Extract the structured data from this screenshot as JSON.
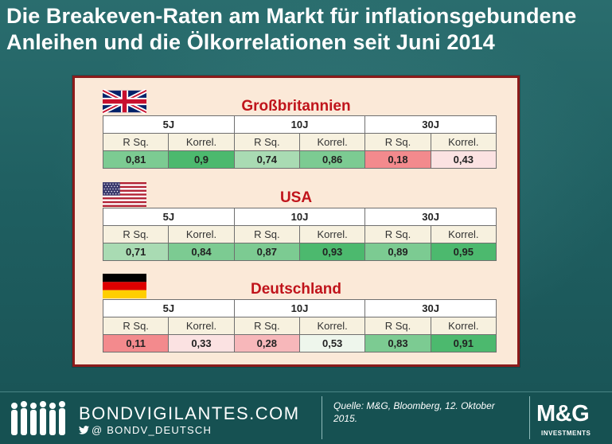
{
  "title": "Die Breakeven-Raten am Markt für inflationsgebundene Anleihen und die Ölkorrelationen seit Juni 2014",
  "colors": {
    "green_dark": "#4cb96e",
    "green_mid": "#7ccb92",
    "green_light": "#a9dbb3",
    "red_strong": "#f38a8d",
    "red_light": "#f7b7ba",
    "pink_pale": "#fbe2e2",
    "neutral_pale": "#eef6ec"
  },
  "subheader": [
    "R Sq.",
    "Korrel.",
    "R Sq.",
    "Korrel.",
    "R Sq.",
    "Korrel."
  ],
  "tenors": [
    "5J",
    "10J",
    "30J"
  ],
  "countries": [
    {
      "name": "Großbritannien",
      "flag": "uk-flag-icon",
      "values": [
        "0,81",
        "0,9",
        "0,74",
        "0,86",
        "0,18",
        "0,43"
      ],
      "cell_colors": [
        "#7ccb92",
        "#4cb96e",
        "#a9dbb3",
        "#7ccb92",
        "#f38a8d",
        "#fbe2e2"
      ]
    },
    {
      "name": "USA",
      "flag": "us-flag-icon",
      "values": [
        "0,71",
        "0,84",
        "0,87",
        "0,93",
        "0,89",
        "0,95"
      ],
      "cell_colors": [
        "#a9dbb3",
        "#7ccb92",
        "#7ccb92",
        "#4cb96e",
        "#7ccb92",
        "#4cb96e"
      ]
    },
    {
      "name": "Deutschland",
      "flag": "germany-flag-icon",
      "values": [
        "0,11",
        "0,33",
        "0,28",
        "0,53",
        "0,83",
        "0,91"
      ],
      "cell_colors": [
        "#f38a8d",
        "#fbe2e2",
        "#f7b7ba",
        "#eef6ec",
        "#7ccb92",
        "#4cb96e"
      ]
    }
  ],
  "footer": {
    "brand": "BONDVIGILANTES.COM",
    "handle": "@  BONDV_DEUTSCH",
    "source": "Quelle: M&G, Bloomberg, 12. Oktober 2015.",
    "logo": "M&G",
    "logo_sub": "INVESTMENTS"
  }
}
